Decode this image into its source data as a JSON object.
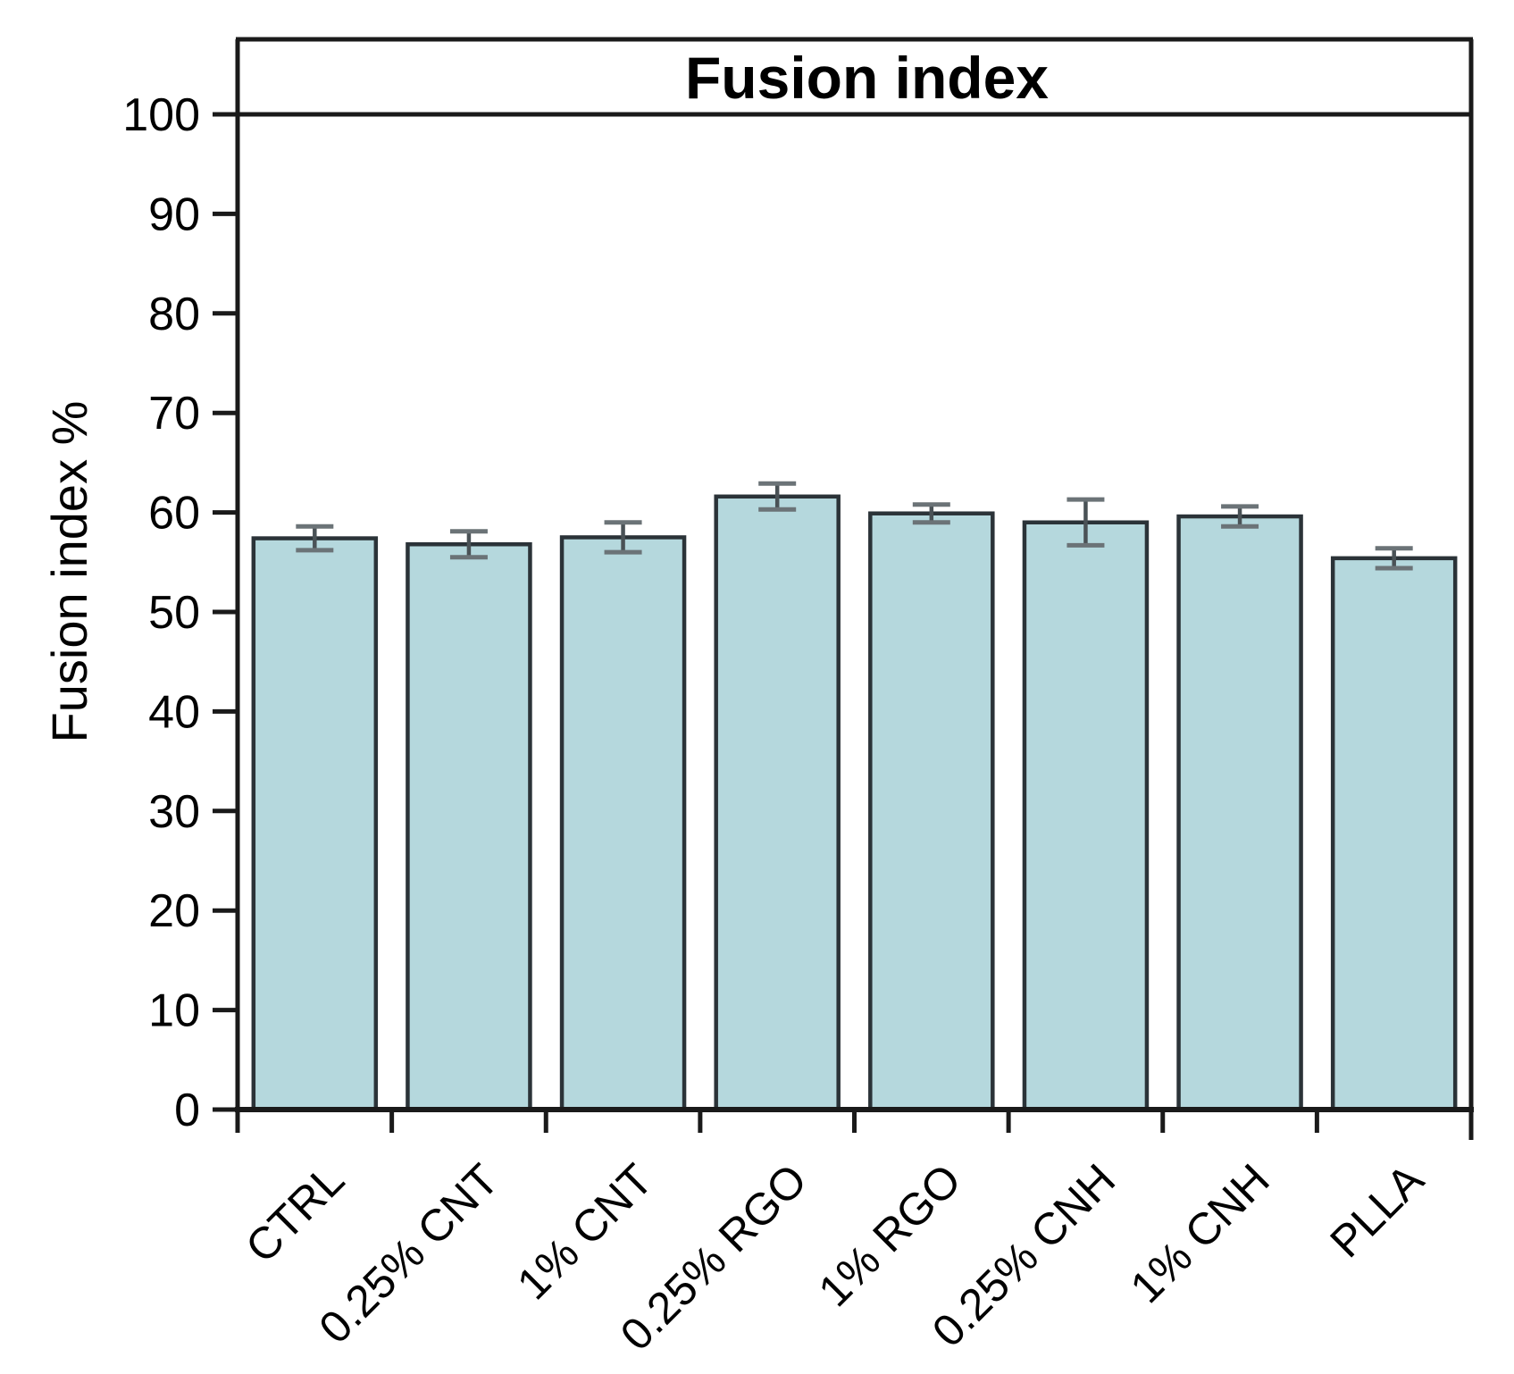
{
  "figure": {
    "title": "Fusion index",
    "y_axis_label": "Fusion index %"
  },
  "chart_data": {
    "type": "bar",
    "title": "Fusion index",
    "xlabel": "",
    "ylabel": "Fusion index %",
    "categories": [
      "CTRL",
      "0.25% CNT",
      "1% CNT",
      "0.25% RGO",
      "1% RGO",
      "0.25% CNH",
      "1% CNH",
      "PLLA"
    ],
    "values": [
      57.4,
      56.8,
      57.5,
      61.6,
      59.9,
      59.0,
      59.6,
      55.4
    ],
    "error_bars": [
      1.2,
      1.3,
      1.5,
      1.3,
      0.9,
      2.3,
      1.0,
      1.0
    ],
    "ylim": [
      0,
      100
    ],
    "ytick_step": 10,
    "ytick_labels": [
      "0",
      "10",
      "20",
      "30",
      "40",
      "50",
      "60",
      "70",
      "80",
      "90",
      "100"
    ],
    "grid": false,
    "legend": "none",
    "title_position": "top-center-boxed",
    "x_label_rotation_deg": -45,
    "colors": {
      "background": "#ffffff",
      "bar_fill": "#b5d8dd",
      "bar_border": "#2b3338",
      "error_bar": "#4a5256",
      "error_cap": "#6b7377",
      "axis": "#1a1a1a",
      "text": "#000000"
    }
  }
}
